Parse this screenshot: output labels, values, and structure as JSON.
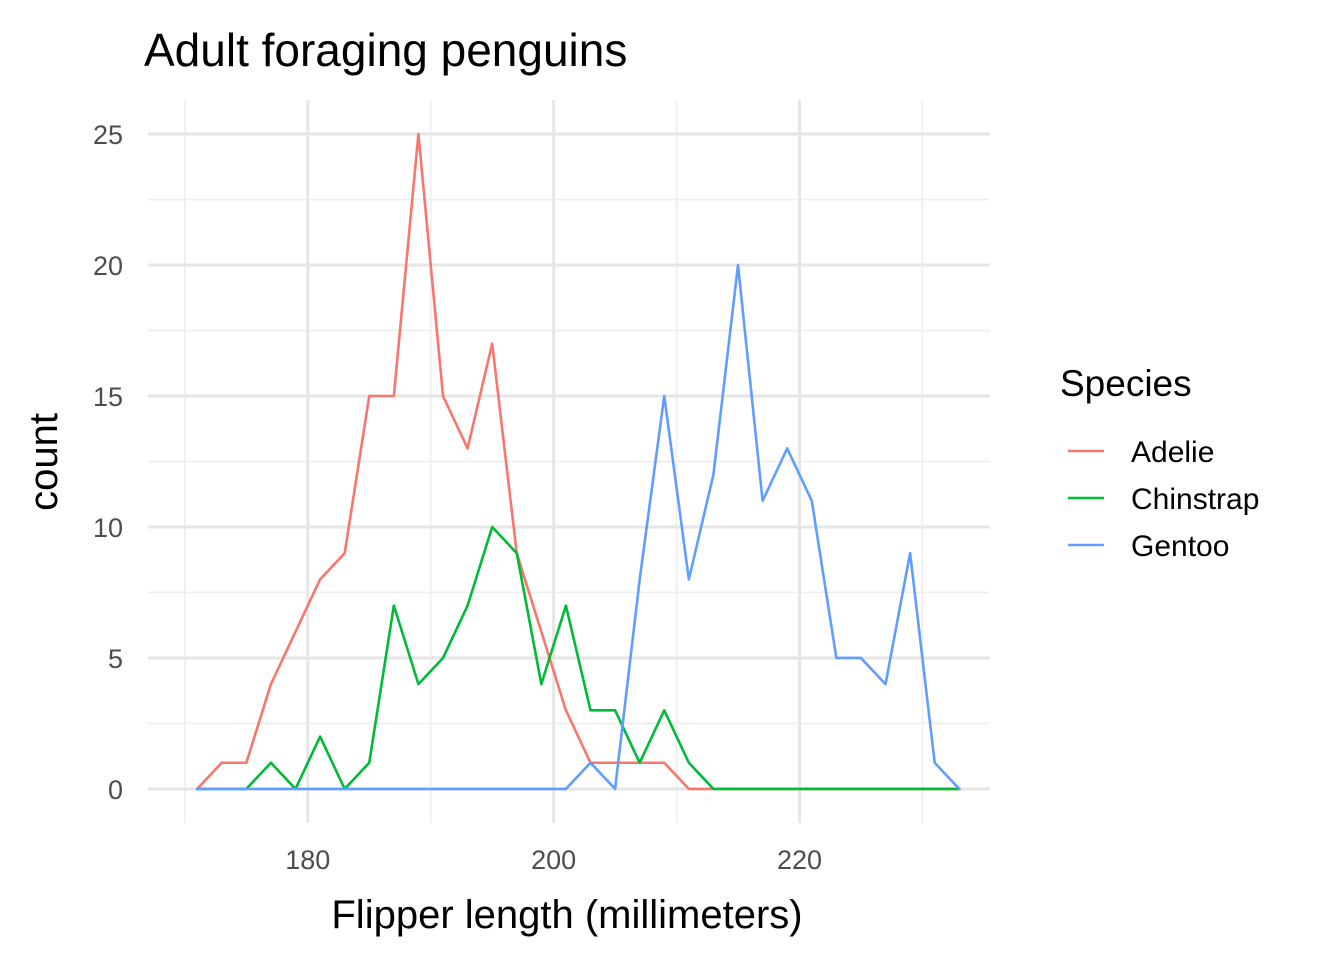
{
  "chart_data": {
    "type": "line",
    "title": "Adult foraging penguins",
    "xlabel": "Flipper length (millimeters)",
    "ylabel": "count",
    "xlim": [
      167,
      235.5
    ],
    "ylim": [
      -1.3,
      26.3
    ],
    "x_major_ticks": [
      180,
      200,
      220
    ],
    "x_minor_ticks": [
      170,
      190,
      210,
      230
    ],
    "y_major_ticks": [
      0,
      5,
      10,
      15,
      20,
      25
    ],
    "y_minor_ticks": [
      2.5,
      7.5,
      12.5,
      17.5,
      22.5
    ],
    "x_tick_labels": [
      "180",
      "200",
      "220"
    ],
    "y_tick_labels": [
      "0",
      "5",
      "10",
      "15",
      "20",
      "25"
    ],
    "grid": true,
    "legend": {
      "title": "Species",
      "position": "right"
    },
    "x": [
      171.0,
      173.0,
      175.0,
      177.0,
      179.0,
      181.0,
      183.0,
      185.0,
      187.0,
      189.0,
      191.0,
      193.0,
      195.0,
      197.0,
      199.0,
      201.0,
      203.0,
      205.0,
      207.0,
      209.0,
      211.0,
      213.0,
      215.0,
      217.0,
      219.0,
      221.0,
      223.0,
      225.0,
      227.0,
      229.0,
      231.0,
      233.0
    ],
    "series": [
      {
        "name": "Adelie",
        "color": "#F8766D",
        "values": [
          0,
          1,
          1,
          4,
          6,
          8,
          9,
          15,
          15,
          25,
          15,
          13,
          17,
          9,
          6,
          3,
          1,
          1,
          1,
          1,
          0,
          0,
          0,
          0,
          0,
          0,
          0,
          0,
          0,
          0,
          0,
          0
        ]
      },
      {
        "name": "Chinstrap",
        "color": "#00BA38",
        "values": [
          0,
          0,
          0,
          1,
          0,
          2,
          0,
          1,
          7,
          4,
          5,
          7,
          10,
          9,
          4,
          7,
          3,
          3,
          1,
          3,
          1,
          0,
          0,
          0,
          0,
          0,
          0,
          0,
          0,
          0,
          0,
          0
        ]
      },
      {
        "name": "Gentoo",
        "color": "#619CFF",
        "values": [
          0,
          0,
          0,
          0,
          0,
          0,
          0,
          0,
          0,
          0,
          0,
          0,
          0,
          0,
          0,
          0,
          1,
          0,
          8,
          15,
          8,
          12,
          20,
          11,
          13,
          11,
          5,
          5,
          4,
          9,
          1,
          0
        ]
      }
    ]
  }
}
